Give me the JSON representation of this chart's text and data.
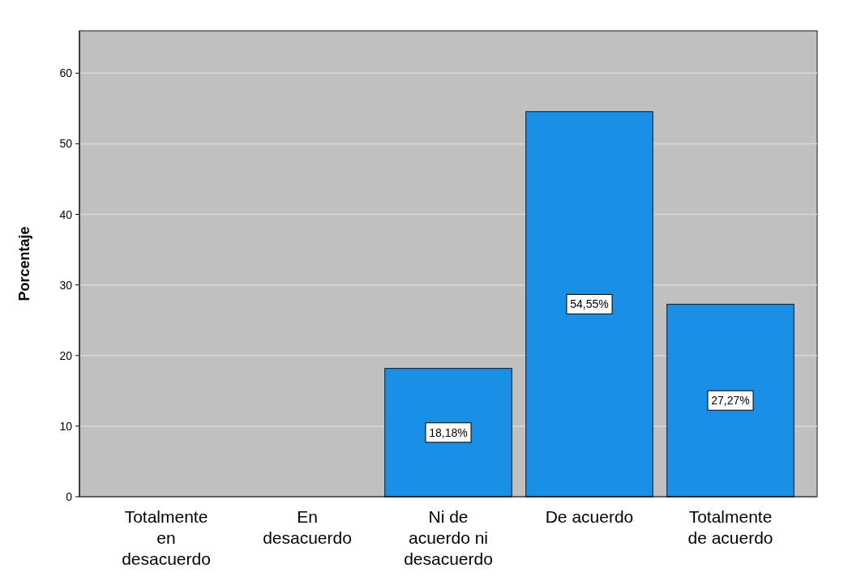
{
  "chart_data": {
    "type": "bar",
    "ylabel": "Porcentaje",
    "categories": [
      "Totalmente en desacuerdo",
      "En desacuerdo",
      "Ni de acuerdo ni desacuerdo",
      "De acuerdo",
      "Totalmente de acuerdo"
    ],
    "values": [
      0,
      0,
      18.18,
      54.55,
      27.27
    ],
    "value_labels": [
      null,
      null,
      "18,18%",
      "54,55%",
      "27,27%"
    ],
    "color": "#1a8fe6",
    "ylim": [
      0,
      66
    ],
    "yticks": [
      0,
      10,
      20,
      30,
      40,
      50,
      60
    ],
    "grid": "y"
  }
}
